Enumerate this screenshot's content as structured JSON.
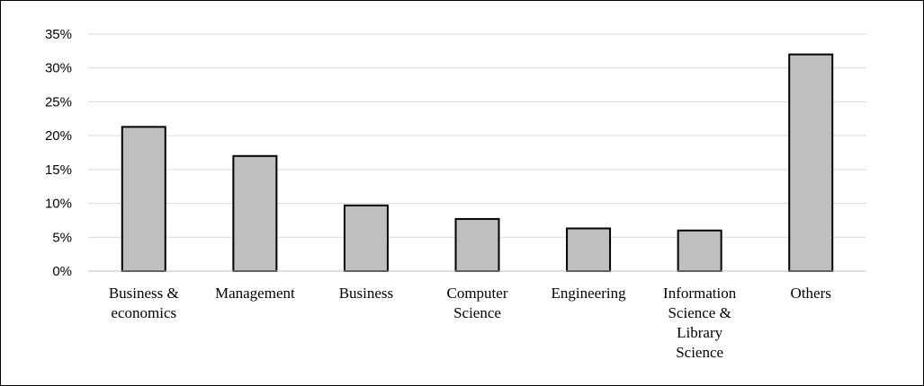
{
  "chart_data": {
    "type": "bar",
    "title": "",
    "xlabel": "",
    "ylabel": "",
    "categories": [
      "Business & economics",
      "Management",
      "Business",
      "Computer Science",
      "Engineering",
      "Information Science & Library Science",
      "Others"
    ],
    "category_label_lines": [
      [
        "Business &",
        "economics"
      ],
      [
        "Management"
      ],
      [
        "Business"
      ],
      [
        "Computer",
        "Science"
      ],
      [
        "Engineering"
      ],
      [
        "Information",
        "Science &",
        "Library",
        "Science"
      ],
      [
        "Others"
      ]
    ],
    "values": [
      21.3,
      17.0,
      9.7,
      7.7,
      6.3,
      6.0,
      32.0
    ],
    "y_unit": "%",
    "ylim": [
      0,
      35
    ],
    "yticks": [
      0,
      5,
      10,
      15,
      20,
      25,
      30,
      35
    ],
    "ytick_labels": [
      "0%",
      "5%",
      "10%",
      "15%",
      "20%",
      "25%",
      "30%",
      "35%"
    ],
    "grid": true,
    "legend": "none",
    "colors": {
      "bar_fill": "#bfbfbf",
      "bar_stroke": "#000000",
      "grid": "#d9d9d9",
      "axis": "#bfbfbf"
    }
  }
}
